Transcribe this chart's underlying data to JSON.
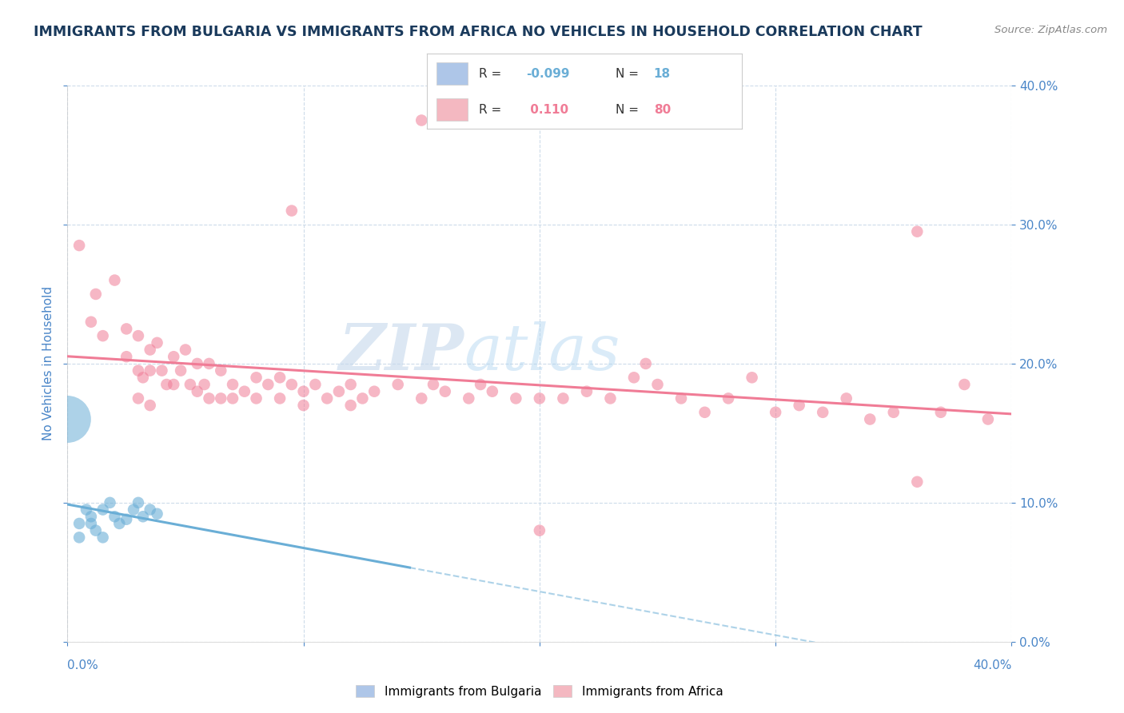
{
  "title": "IMMIGRANTS FROM BULGARIA VS IMMIGRANTS FROM AFRICA NO VEHICLES IN HOUSEHOLD CORRELATION CHART",
  "source_text": "Source: ZipAtlas.com",
  "ylabel": "No Vehicles in Household",
  "xlim": [
    0.0,
    0.4
  ],
  "ylim": [
    0.0,
    0.4
  ],
  "legend_label1": "Immigrants from Bulgaria",
  "legend_label2": "Immigrants from Africa",
  "bulgaria_R": -0.099,
  "africa_R": 0.11,
  "bulgaria_color": "#6aaed6",
  "africa_color": "#f07c96",
  "bulgaria_scatter": [
    [
      0.005,
      0.085
    ],
    [
      0.005,
      0.075
    ],
    [
      0.008,
      0.095
    ],
    [
      0.01,
      0.085
    ],
    [
      0.01,
      0.09
    ],
    [
      0.012,
      0.08
    ],
    [
      0.015,
      0.095
    ],
    [
      0.015,
      0.075
    ],
    [
      0.018,
      0.1
    ],
    [
      0.02,
      0.09
    ],
    [
      0.022,
      0.085
    ],
    [
      0.025,
      0.088
    ],
    [
      0.028,
      0.095
    ],
    [
      0.03,
      0.1
    ],
    [
      0.032,
      0.09
    ],
    [
      0.035,
      0.095
    ],
    [
      0.038,
      0.092
    ],
    [
      0.0,
      0.16
    ]
  ],
  "bulgaria_sizes": [
    80,
    80,
    80,
    80,
    80,
    80,
    80,
    80,
    80,
    80,
    80,
    80,
    80,
    80,
    80,
    80,
    80,
    1800
  ],
  "africa_scatter": [
    [
      0.005,
      0.285
    ],
    [
      0.01,
      0.23
    ],
    [
      0.012,
      0.25
    ],
    [
      0.015,
      0.22
    ],
    [
      0.02,
      0.26
    ],
    [
      0.025,
      0.225
    ],
    [
      0.025,
      0.205
    ],
    [
      0.03,
      0.22
    ],
    [
      0.03,
      0.195
    ],
    [
      0.03,
      0.175
    ],
    [
      0.032,
      0.19
    ],
    [
      0.035,
      0.21
    ],
    [
      0.035,
      0.195
    ],
    [
      0.035,
      0.17
    ],
    [
      0.038,
      0.215
    ],
    [
      0.04,
      0.195
    ],
    [
      0.042,
      0.185
    ],
    [
      0.045,
      0.205
    ],
    [
      0.045,
      0.185
    ],
    [
      0.048,
      0.195
    ],
    [
      0.05,
      0.21
    ],
    [
      0.052,
      0.185
    ],
    [
      0.055,
      0.2
    ],
    [
      0.055,
      0.18
    ],
    [
      0.058,
      0.185
    ],
    [
      0.06,
      0.2
    ],
    [
      0.06,
      0.175
    ],
    [
      0.065,
      0.195
    ],
    [
      0.065,
      0.175
    ],
    [
      0.07,
      0.185
    ],
    [
      0.07,
      0.175
    ],
    [
      0.075,
      0.18
    ],
    [
      0.08,
      0.19
    ],
    [
      0.08,
      0.175
    ],
    [
      0.085,
      0.185
    ],
    [
      0.09,
      0.19
    ],
    [
      0.09,
      0.175
    ],
    [
      0.095,
      0.185
    ],
    [
      0.1,
      0.18
    ],
    [
      0.1,
      0.17
    ],
    [
      0.105,
      0.185
    ],
    [
      0.11,
      0.175
    ],
    [
      0.115,
      0.18
    ],
    [
      0.12,
      0.185
    ],
    [
      0.12,
      0.17
    ],
    [
      0.125,
      0.175
    ],
    [
      0.13,
      0.18
    ],
    [
      0.14,
      0.185
    ],
    [
      0.15,
      0.175
    ],
    [
      0.155,
      0.185
    ],
    [
      0.16,
      0.18
    ],
    [
      0.17,
      0.175
    ],
    [
      0.175,
      0.185
    ],
    [
      0.18,
      0.18
    ],
    [
      0.19,
      0.175
    ],
    [
      0.2,
      0.08
    ],
    [
      0.2,
      0.175
    ],
    [
      0.21,
      0.175
    ],
    [
      0.22,
      0.18
    ],
    [
      0.23,
      0.175
    ],
    [
      0.24,
      0.19
    ],
    [
      0.25,
      0.185
    ],
    [
      0.26,
      0.175
    ],
    [
      0.27,
      0.165
    ],
    [
      0.28,
      0.175
    ],
    [
      0.29,
      0.19
    ],
    [
      0.3,
      0.165
    ],
    [
      0.31,
      0.17
    ],
    [
      0.32,
      0.165
    ],
    [
      0.33,
      0.175
    ],
    [
      0.34,
      0.16
    ],
    [
      0.35,
      0.165
    ],
    [
      0.36,
      0.115
    ],
    [
      0.37,
      0.165
    ],
    [
      0.38,
      0.185
    ],
    [
      0.39,
      0.16
    ],
    [
      0.095,
      0.31
    ],
    [
      0.36,
      0.295
    ],
    [
      0.15,
      0.375
    ],
    [
      0.245,
      0.2
    ]
  ],
  "watermark_zip": "ZIP",
  "watermark_atlas": "atlas",
  "background_color": "#ffffff",
  "grid_color": "#c8d8e8",
  "title_color": "#1a3a5c",
  "axis_label_color": "#4a86c8",
  "tick_label_color": "#4a86c8",
  "legend_box_color1": "#aec6e8",
  "legend_box_color2": "#f4b8c1",
  "bulgaria_line_end_x": 0.145,
  "africa_line_intercept": 0.155,
  "africa_line_slope": 0.075
}
